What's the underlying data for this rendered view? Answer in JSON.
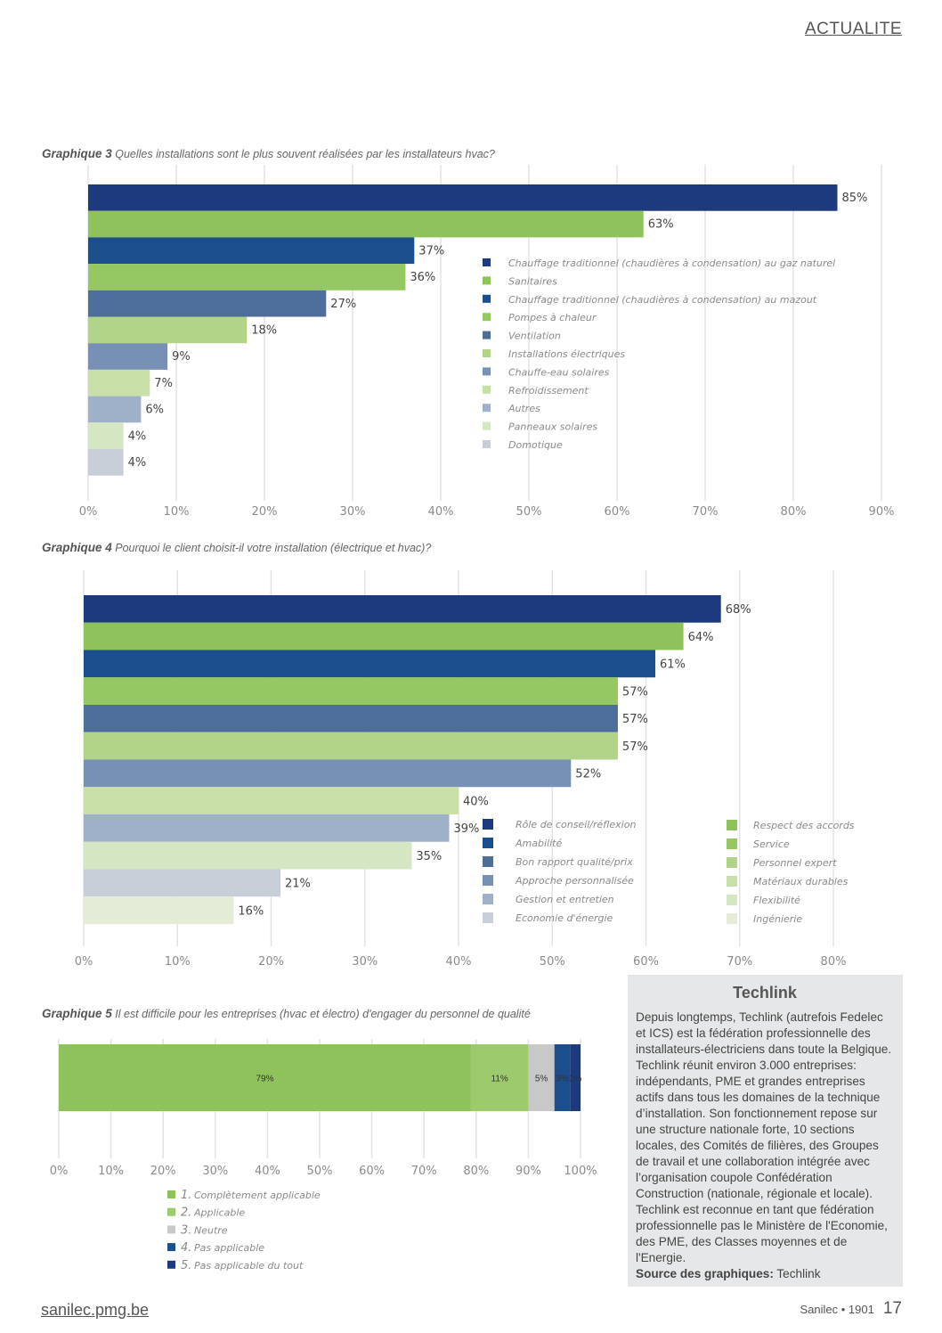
{
  "header": {
    "section": "ACTUALITE"
  },
  "footer": {
    "url": "sanilec.pmg.be",
    "issue": "Sanilec • 1901",
    "page": "17"
  },
  "infobox": {
    "title": "Techlink",
    "body": "Depuis longtemps, Techlink (autrefois Fedelec et ICS) est la fédération professionnelle des installateurs-électriciens dans toute la Belgique. Techlink réunit environ 3.000 entreprises: indépendants, PME et grandes entreprises actifs dans tous les domaines de la technique d’installation. Son fonctionnement repose sur une structure nationale forte, 10 sections locales, des Comités de filières, des Groupes de travail et une collaboration intégrée avec l’organisation coupole Confédération Construction (nationale, régionale et locale). Techlink est reconnue en tant que fédération professionnelle pas le Ministère de l'Economie, des PME, des Classes moyennes et de l'Energie.",
    "source_label": "Source des graphiques:",
    "source_value": "Techlink"
  },
  "chart_data": [
    {
      "type": "bar",
      "title_prefix": "Graphique 3",
      "title": "Quelles installations sont le plus souvent réalisées par les installateurs hvac?",
      "orientation": "horizontal",
      "categories": [
        "Chauffage traditionnel (chaudières à condensation) au gaz naturel",
        "Sanitaires",
        "Chauffage traditionnel (chaudières à condensation) au mazout",
        "Pompes à chaleur",
        "Ventilation",
        "Installations électriques",
        "Chauffe-eau solaires",
        "Refroidissement",
        "Autres",
        "Panneaux solaires",
        "Domotique"
      ],
      "values": [
        85,
        63,
        37,
        36,
        27,
        18,
        9,
        7,
        6,
        4,
        4
      ],
      "value_labels": [
        "85%",
        "63%",
        "37%",
        "36%",
        "27%",
        "18%",
        "9%",
        "7%",
        "6%",
        "4%",
        "4%"
      ],
      "colors": [
        "#1e3a7e",
        "#8ec25a",
        "#1b4e8c",
        "#95c763",
        "#4d6e9b",
        "#b2d488",
        "#7790b6",
        "#c8e0a8",
        "#9fb1c9",
        "#d5e7c2",
        "#c8ced8"
      ],
      "xlim": [
        0,
        90
      ],
      "xticks": [
        "0%",
        "10%",
        "20%",
        "30%",
        "40%",
        "50%",
        "60%",
        "70%",
        "80%",
        "90%"
      ],
      "grid": true,
      "legend": "inside-right"
    },
    {
      "type": "bar",
      "title_prefix": "Graphique 4",
      "title": "Pourquoi le client choisit-il votre installation (électrique et hvac)?",
      "orientation": "horizontal",
      "values": [
        68,
        64,
        61,
        57,
        57,
        57,
        52,
        40,
        39,
        35,
        21,
        16
      ],
      "value_labels": [
        "68%",
        "64%",
        "61%",
        "57%",
        "57%",
        "57%",
        "52%",
        "40%",
        "39%",
        "35%",
        "21%",
        "16%"
      ],
      "colors": [
        "#1e3a7e",
        "#8ec25a",
        "#1b4e8c",
        "#95c763",
        "#4d6e9b",
        "#b2d488",
        "#7790b6",
        "#c8e0a8",
        "#9fb1c9",
        "#d5e7c2",
        "#c8ced8",
        "#e4ecd8"
      ],
      "legend_left": [
        "Rôle de conseil/réflexion",
        "Amabilité",
        "Bon rapport qualité/prix",
        "Approche personnalisée",
        "Gestion et entretien",
        "Economie d'énergie"
      ],
      "legend_left_colors": [
        "#1e3a7e",
        "#1b4e8c",
        "#4d6e9b",
        "#7790b6",
        "#9fb1c9",
        "#c8ced8"
      ],
      "legend_right": [
        "Respect des accords",
        "Service",
        "Personnel expert",
        "Matériaux durables",
        "Flexibilité",
        "Ingénierie"
      ],
      "legend_right_colors": [
        "#8ec25a",
        "#95c763",
        "#b2d488",
        "#c8e0a8",
        "#d5e7c2",
        "#e4ecd8"
      ],
      "xlim": [
        0,
        80
      ],
      "xticks": [
        "0%",
        "10%",
        "20%",
        "30%",
        "40%",
        "50%",
        "60%",
        "70%",
        "80%"
      ],
      "grid": true,
      "legend": "inside-right"
    },
    {
      "type": "bar",
      "title_prefix": "Graphique 5",
      "title": "Il est difficile pour les entreprises (hvac et électro) d'engager du personnel de qualité",
      "orientation": "horizontal-stacked",
      "series": [
        {
          "name": "1. Complètement applicable",
          "value": 79,
          "label": "79%",
          "color": "#8ec25a"
        },
        {
          "name": "2. Applicable",
          "value": 11,
          "label": "11%",
          "color": "#9dca6c"
        },
        {
          "name": "3. Neutre",
          "value": 5,
          "label": "5%",
          "color": "#c8c8c8"
        },
        {
          "name": "4. Pas applicable",
          "value": 3,
          "label": "3%",
          "color": "#1b4e8c"
        },
        {
          "name": "5. Pas applicable du tout",
          "value": 2,
          "label": "2%",
          "color": "#1e3a7e"
        }
      ],
      "legend_numbers": [
        "1.",
        "2.",
        "3.",
        "4.",
        "5."
      ],
      "legend_texts": [
        "Complètement applicable",
        "Applicable",
        "Neutre",
        "Pas applicable",
        "Pas applicable du tout"
      ],
      "xlim": [
        0,
        100
      ],
      "xticks": [
        "0%",
        "10%",
        "20%",
        "30%",
        "40%",
        "50%",
        "60%",
        "70%",
        "80%",
        "90%",
        "100%"
      ],
      "grid": true,
      "legend": "bottom-left"
    }
  ]
}
